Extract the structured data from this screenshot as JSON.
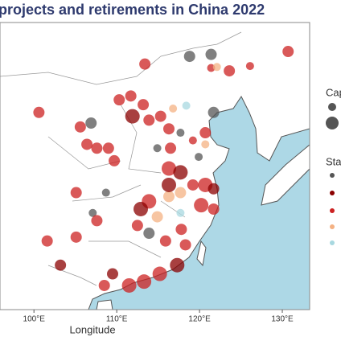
{
  "chart_data": {
    "type": "scatter",
    "title": "projects and retirements in China 2022",
    "xlabel": "Longitude",
    "xlim": [
      95.9,
      133.3
    ],
    "ylim": [
      19.6,
      49.3
    ],
    "xticks": [
      {
        "value": 100,
        "label": "100°E"
      },
      {
        "value": 110,
        "label": "110°E"
      },
      {
        "value": 120,
        "label": "120°E"
      },
      {
        "value": 130,
        "label": "130°E"
      }
    ],
    "legend_size_title": "Cap",
    "legend_color_title": "Sta",
    "x": [
      113.4,
      118.8,
      121.4,
      121.4,
      123.6,
      122.1,
      130.7,
      126.1,
      100.6,
      105.6,
      106.9,
      106.4,
      107.6,
      109.0,
      110.3,
      111.7,
      113.2,
      111.9,
      113.9,
      115.3,
      116.8,
      118.4,
      121.7,
      116.3,
      117.7,
      114.9,
      116.5,
      119.2,
      120.7,
      116.3,
      117.7,
      119.2,
      120.7,
      121.7,
      120.2,
      121.7,
      117.7,
      116.3,
      113.9,
      112.9,
      114.9,
      112.5,
      113.9,
      115.9,
      117.8,
      118.3,
      117.3,
      115.2,
      113.3,
      111.5,
      108.5,
      109.5,
      107.1,
      107.6,
      105.1,
      101.6,
      103.2,
      108.7,
      109.7,
      116.3,
      119.9,
      120.7,
      117.7,
      105.1
    ],
    "y": [
      45.0,
      45.8,
      46.0,
      44.6,
      44.3,
      44.7,
      46.3,
      44.8,
      40.0,
      38.5,
      38.9,
      36.7,
      36.3,
      36.3,
      41.3,
      41.7,
      40.8,
      39.6,
      39.2,
      39.6,
      40.4,
      40.7,
      40.0,
      38.3,
      37.9,
      36.3,
      36.3,
      37.1,
      37.9,
      34.2,
      33.8,
      32.5,
      32.5,
      32.1,
      30.4,
      30.0,
      31.7,
      31.3,
      30.8,
      30.0,
      29.2,
      28.3,
      27.5,
      26.7,
      27.9,
      26.3,
      24.2,
      23.3,
      22.5,
      22.1,
      22.1,
      23.3,
      29.6,
      28.8,
      27.1,
      26.7,
      24.2,
      31.7,
      35.0,
      32.5,
      35.4,
      36.7,
      29.6,
      31.7
    ],
    "sizes": [
      2,
      2,
      2,
      1,
      2,
      1,
      2,
      1,
      2,
      2,
      2,
      2,
      2,
      2,
      2,
      2,
      2,
      3,
      2,
      2,
      1,
      1,
      2,
      2,
      1,
      1,
      2,
      1,
      2,
      3,
      3,
      2,
      3,
      2,
      3,
      2,
      2,
      2,
      3,
      3,
      2,
      2,
      2,
      2,
      2,
      2,
      3,
      3,
      3,
      3,
      2,
      2,
      1,
      2,
      2,
      2,
      2,
      1,
      2,
      3,
      1,
      1,
      1,
      2
    ],
    "colors": [
      "#cc2222",
      "#555555",
      "#555555",
      "#cc2222",
      "#cc2222",
      "#f4b183",
      "#cc2222",
      "#cc2222",
      "#cc2222",
      "#cc2222",
      "#555555",
      "#cc2222",
      "#cc2222",
      "#cc2222",
      "#cc2222",
      "#cc2222",
      "#cc2222",
      "#8b0000",
      "#cc2222",
      "#cc2222",
      "#f4b183",
      "#a8d8e0",
      "#555555",
      "#cc2222",
      "#555555",
      "#555555",
      "#cc2222",
      "#cc2222",
      "#cc2222",
      "#cc2222",
      "#8b0000",
      "#cc2222",
      "#cc2222",
      "#8b0000",
      "#cc2222",
      "#cc2222",
      "#f4b183",
      "#f4b183",
      "#cc2222",
      "#8b0000",
      "#f4b183",
      "#cc2222",
      "#555555",
      "#cc2222",
      "#cc2222",
      "#cc2222",
      "#8b0000",
      "#cc2222",
      "#cc2222",
      "#cc2222",
      "#cc2222",
      "#8b0000",
      "#555555",
      "#cc2222",
      "#cc2222",
      "#cc2222",
      "#8b0000",
      "#555555",
      "#cc2222",
      "#8b0000",
      "#555555",
      "#f4b183",
      "#a8d8e0",
      "#cc2222"
    ]
  }
}
